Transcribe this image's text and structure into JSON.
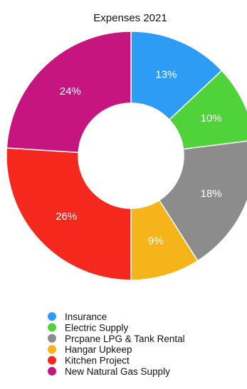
{
  "chart_data": {
    "type": "pie",
    "title": "Expenses 2021",
    "categories": [
      "Insurance",
      "Electric Supply",
      "Prcpane LPG & Tank Rental",
      "Hangar Upkeep",
      "Kitchen Project",
      "New Natural Gas Supply"
    ],
    "values": [
      13,
      10,
      18,
      9,
      26,
      24
    ],
    "value_labels": [
      "13%",
      "10%",
      "18%",
      "9%",
      "26%",
      "24%"
    ],
    "colors": [
      "#2d9cf4",
      "#4fd23a",
      "#8c8c8c",
      "#f5b419",
      "#f5281e",
      "#c7157f"
    ],
    "hole": true,
    "legend_position": "bottom"
  }
}
